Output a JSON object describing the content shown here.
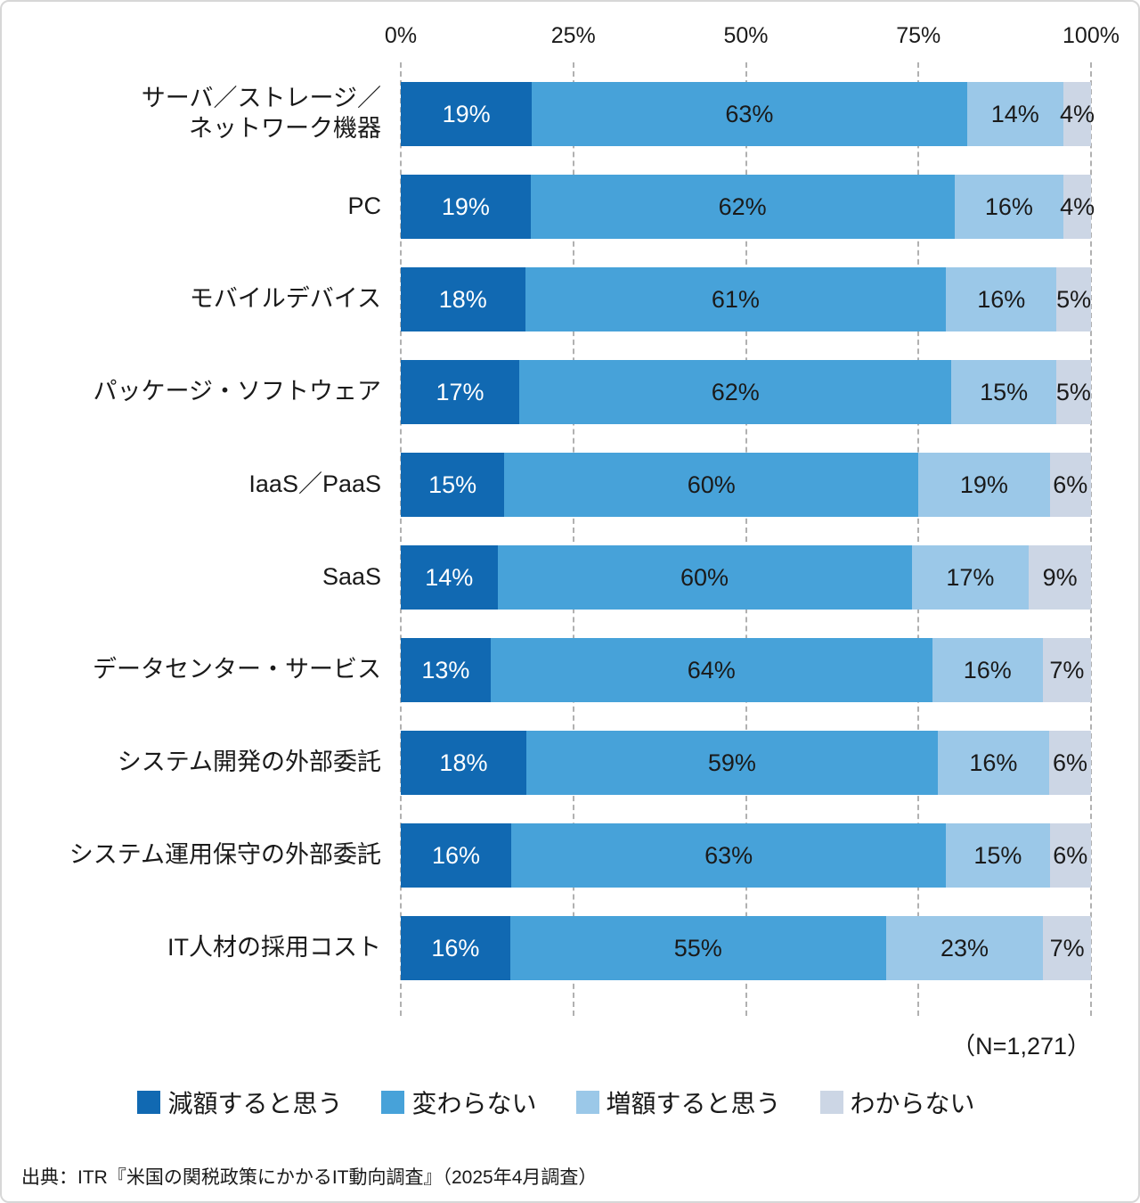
{
  "page": {
    "n_note": "（N=1,271）",
    "source": "出典：ITR『米国の関税政策にかかるIT動向調査』（2025年4月調査）"
  },
  "chart_data": {
    "type": "bar",
    "orientation": "horizontal",
    "stacked": true,
    "grid": "vertical-dashed",
    "legend_position": "bottom",
    "xlim": [
      0,
      100
    ],
    "x_ticks": [
      "0%",
      "25%",
      "50%",
      "75%",
      "100%"
    ],
    "categories": [
      "サーバ／ストレージ／\nネットワーク機器",
      "PC",
      "モバイルデバイス",
      "パッケージ・ソフトウェア",
      "IaaS／PaaS",
      "SaaS",
      "データセンター・サービス",
      "システム開発の外部委託",
      "システム運用保守の外部委託",
      "IT人材の採用コスト"
    ],
    "series": [
      {
        "name": "減額すると思う",
        "color": "#1169b2",
        "text_color": "#ffffff",
        "values": [
          19,
          19,
          18,
          17,
          15,
          14,
          13,
          18,
          16,
          16
        ]
      },
      {
        "name": "変わらない",
        "color": "#47a2d9",
        "text_color": "#1a1a1a",
        "values": [
          63,
          62,
          61,
          62,
          60,
          60,
          64,
          59,
          63,
          55
        ]
      },
      {
        "name": "増額すると思う",
        "color": "#9bc8e8",
        "text_color": "#1a1a1a",
        "values": [
          14,
          16,
          16,
          15,
          19,
          17,
          16,
          16,
          15,
          23
        ]
      },
      {
        "name": "わからない",
        "color": "#ccd6e5",
        "text_color": "#1a1a1a",
        "values": [
          4,
          4,
          5,
          5,
          6,
          9,
          7,
          6,
          6,
          7
        ]
      }
    ]
  }
}
